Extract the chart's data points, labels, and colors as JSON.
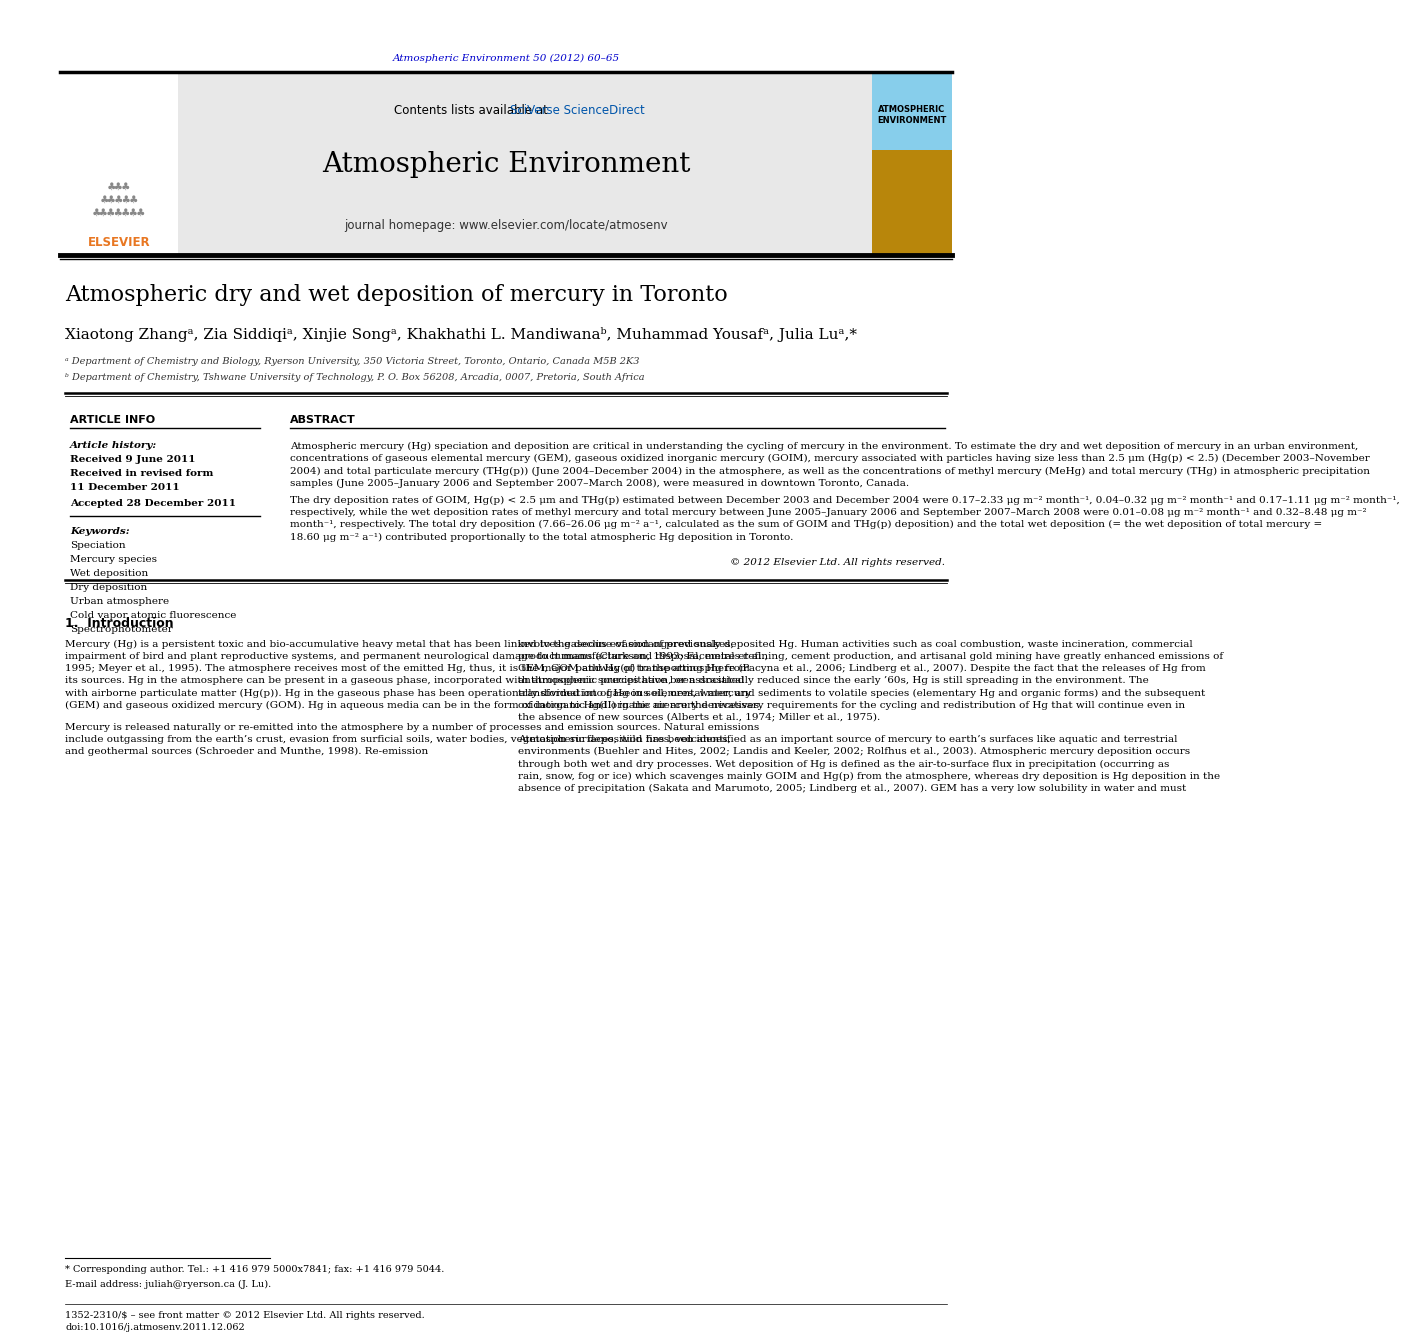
{
  "page_bg": "#ffffff",
  "journal_ref_text": "Atmospheric Environment 50 (2012) 60–65",
  "journal_ref_color": "#0000cc",
  "contents_text": "Contents lists available at ",
  "sciverse_text": "SciVerse ScienceDirect",
  "sciverse_color": "#0066cc",
  "journal_title": "Atmospheric Environment",
  "journal_homepage": "journal homepage: www.elsevier.com/locate/atmosenv",
  "header_bg": "#e8e8e8",
  "article_title": "Atmospheric dry and wet deposition of mercury in Toronto",
  "affil_a": "ᵃ Department of Chemistry and Biology, Ryerson University, 350 Victoria Street, Toronto, Ontario, Canada M5B 2K3",
  "affil_b": "ᵇ Department of Chemistry, Tshwane University of Technology, P. O. Box 56208, Arcadia, 0007, Pretoria, South Africa",
  "article_info_header": "ARTICLE INFO",
  "abstract_header": "ABSTRACT",
  "article_history_label": "Article history:",
  "received_1": "Received 9 June 2011",
  "received_2": "Received in revised form",
  "date_2": "11 December 2011",
  "accepted": "Accepted 28 December 2011",
  "keywords_label": "Keywords:",
  "keywords": [
    "Speciation",
    "Mercury species",
    "Wet deposition",
    "Dry deposition",
    "Urban atmosphere",
    "Cold vapor atomic fluorescence",
    "Spectrophotometer"
  ],
  "abstract_text": "Atmospheric mercury (Hg) speciation and deposition are critical in understanding the cycling of mercury in the environment. To estimate the dry and wet deposition of mercury in an urban environment, concentrations of gaseous elemental mercury (GEM), gaseous oxidized inorganic mercury (GOIM), mercury associated with particles having size less than 2.5 μm (Hg(p) < 2.5) (December 2003–November 2004) and total particulate mercury (THg(p)) (June 2004–December 2004) in the atmosphere, as well as the concentrations of methyl mercury (MeHg) and total mercury (THg) in atmospheric precipitation samples (June 2005–January 2006 and September 2007–March 2008), were measured in downtown Toronto, Canada.",
  "abstract_para2": "The dry deposition rates of GOIM, Hg(p) < 2.5 μm and THg(p) estimated between December 2003 and December 2004 were 0.17–2.33 μg m⁻² month⁻¹, 0.04–0.32 μg m⁻² month⁻¹ and 0.17–1.11 μg m⁻² month⁻¹, respectively, while the wet deposition rates of methyl mercury and total mercury between June 2005–January 2006 and September 2007–March 2008 were 0.01–0.08 μg m⁻² month⁻¹ and 0.32–8.48 μg m⁻² month⁻¹, respectively. The total dry deposition (7.66–26.06 μg m⁻² a⁻¹, calculated as the sum of GOIM and THg(p) deposition) and the total wet deposition (= the wet deposition of total mercury = 18.60 μg m⁻² a⁻¹) contributed proportionally to the total atmospheric Hg deposition in Toronto.",
  "copyright_text": "© 2012 Elsevier Ltd. All rights reserved.",
  "intro_header": "1.  Introduction",
  "intro_col1_p1": "Mercury (Hg) is a persistent toxic and bio-accumulative heavy metal that has been linked to the decline of endangered snakes, impairment of bird and plant reproductive systems, and permanent neurological damage to humans (Clarkson, 1993; Facemire et al., 1995; Meyer et al., 1995). The atmosphere receives most of the emitted Hg, thus, it is the major pathway of transporting Hg from its sources. Hg in the atmosphere can be present in a gaseous phase, incorporated with atmospheric precipitation, or associated with airborne particulate matter (Hg(p)). Hg in the gaseous phase has been operationally divided into gaseous elemental mercury (GEM) and gaseous oxidized mercury (GOM). Hg in aqueous media can be in the form of inorganic and organic mercury derivatives.",
  "intro_col1_p2": "Mercury is released naturally or re-emitted into the atmosphere by a number of processes and emission sources. Natural emissions include outgassing from the earth’s crust, evasion from surficial soils, water bodies, vegetation surfaces, wild fires, volcanoes, and geothermal sources (Schroeder and Munthe, 1998). Re-emission",
  "intro_col2_p1": "involves gaseous evasion of previously deposited Hg. Human activities such as coal combustion, waste incineration, commercial product manufacture and disposal, metals refining, cement production, and artisanal gold mining have greatly enhanced emissions of GEM, GOM and Hg(p) to the atmosphere (Pacyna et al., 2006; Lindberg et al., 2007). Despite the fact that the releases of Hg from anthropogenic sources have been drastically reduced since the early ’60s, Hg is still spreading in the environment. The transformation of Hg in soil, ores, water, and sediments to volatile species (elementary Hg and organic forms) and the subsequent oxidation to Hg(II) in the air are the necessary requirements for the cycling and redistribution of Hg that will continue even in the absence of new sources (Alberts et al., 1974; Miller et al., 1975).",
  "intro_col2_p2": "Atmospheric deposition has been identified as an important source of mercury to earth’s surfaces like aquatic and terrestrial environments (Buehler and Hites, 2002; Landis and Keeler, 2002; Rolfhus et al., 2003). Atmospheric mercury deposition occurs through both wet and dry processes. Wet deposition of Hg is defined as the air-to-surface flux in precipitation (occurring as rain, snow, fog or ice) which scavenges mainly GOIM and Hg(p) from the atmosphere, whereas dry deposition is Hg deposition in the absence of precipitation (Sakata and Marumoto, 2005; Lindberg et al., 2007). GEM has a very low solubility in water and must",
  "footnote_star": "* Corresponding author. Tel.: +1 416 979 5000x7841; fax: +1 416 979 5044.",
  "footnote_email": "E-mail address: juliah@ryerson.ca (J. Lu).",
  "issn_line": "1352-2310/$ – see front matter © 2012 Elsevier Ltd. All rights reserved.",
  "doi_line": "doi:10.1016/j.atmosenv.2011.12.062",
  "elsevier_orange": "#e87722",
  "dark_gray": "#333333"
}
